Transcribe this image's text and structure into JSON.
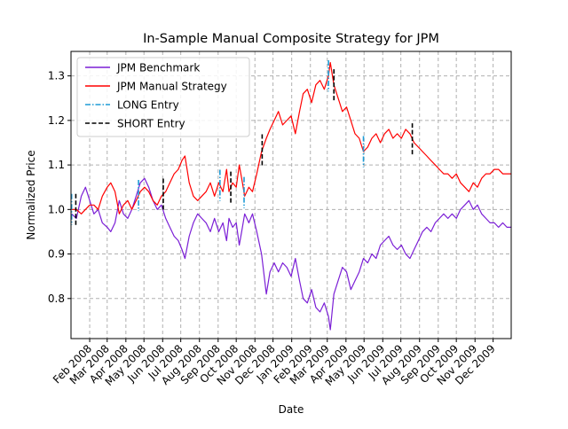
{
  "chart_data": {
    "type": "line",
    "title": "In-Sample Manual Composite Strategy for JPM",
    "xlabel": "Date",
    "ylabel": "Normalized Price",
    "x_range": [
      "2008-01-01",
      "2009-12-31"
    ],
    "ylim": [
      0.71,
      1.355
    ],
    "grid": true,
    "legend_position": "top-left",
    "x_ticks": [
      "Feb 2008",
      "Mar 2008",
      "Apr 2008",
      "May 2008",
      "Jun 2008",
      "Jul 2008",
      "Aug 2008",
      "Sep 2008",
      "Oct 2008",
      "Nov 2008",
      "Dec 2008",
      "Jan 2009",
      "Feb 2009",
      "Mar 2009",
      "Apr 2009",
      "May 2009",
      "Jun 2009",
      "Jul 2009",
      "Aug 2009",
      "Sep 2009",
      "Oct 2009",
      "Nov 2009",
      "Dec 2009"
    ],
    "x_tick_dates": [
      "2008-02-01",
      "2008-03-01",
      "2008-04-01",
      "2008-05-01",
      "2008-06-01",
      "2008-07-01",
      "2008-08-01",
      "2008-09-01",
      "2008-10-01",
      "2008-11-01",
      "2008-12-01",
      "2009-01-01",
      "2009-02-01",
      "2009-03-01",
      "2009-04-01",
      "2009-05-01",
      "2009-06-01",
      "2009-07-01",
      "2009-08-01",
      "2009-09-01",
      "2009-10-01",
      "2009-11-01",
      "2009-12-01"
    ],
    "y_ticks": [
      0.8,
      0.9,
      1.0,
      1.1,
      1.2,
      1.3
    ],
    "y_tick_labels": [
      "0.8",
      "0.9",
      "1.0",
      "1.1",
      "1.2",
      "1.3"
    ],
    "series": [
      {
        "name": "JPM Benchmark",
        "color": "#7b1fd6",
        "points": [
          [
            "2008-01-02",
            0.99
          ],
          [
            "2008-01-10",
            0.98
          ],
          [
            "2008-01-18",
            1.03
          ],
          [
            "2008-01-25",
            1.05
          ],
          [
            "2008-02-01",
            1.02
          ],
          [
            "2008-02-08",
            0.99
          ],
          [
            "2008-02-15",
            1.0
          ],
          [
            "2008-02-22",
            0.97
          ],
          [
            "2008-03-01",
            0.96
          ],
          [
            "2008-03-07",
            0.95
          ],
          [
            "2008-03-14",
            0.97
          ],
          [
            "2008-03-21",
            1.02
          ],
          [
            "2008-03-28",
            0.99
          ],
          [
            "2008-04-04",
            0.98
          ],
          [
            "2008-04-11",
            1.0
          ],
          [
            "2008-04-18",
            1.03
          ],
          [
            "2008-04-25",
            1.06
          ],
          [
            "2008-05-02",
            1.07
          ],
          [
            "2008-05-09",
            1.05
          ],
          [
            "2008-05-16",
            1.02
          ],
          [
            "2008-05-23",
            1.0
          ],
          [
            "2008-05-30",
            1.01
          ],
          [
            "2008-06-06",
            0.98
          ],
          [
            "2008-06-13",
            0.96
          ],
          [
            "2008-06-20",
            0.94
          ],
          [
            "2008-06-27",
            0.93
          ],
          [
            "2008-07-03",
            0.91
          ],
          [
            "2008-07-08",
            0.89
          ],
          [
            "2008-07-15",
            0.94
          ],
          [
            "2008-07-22",
            0.97
          ],
          [
            "2008-07-29",
            0.99
          ],
          [
            "2008-08-05",
            0.98
          ],
          [
            "2008-08-12",
            0.97
          ],
          [
            "2008-08-19",
            0.95
          ],
          [
            "2008-08-26",
            0.98
          ],
          [
            "2008-09-02",
            0.95
          ],
          [
            "2008-09-09",
            0.97
          ],
          [
            "2008-09-15",
            0.93
          ],
          [
            "2008-09-19",
            0.98
          ],
          [
            "2008-09-25",
            0.96
          ],
          [
            "2008-10-01",
            0.97
          ],
          [
            "2008-10-06",
            0.92
          ],
          [
            "2008-10-10",
            0.95
          ],
          [
            "2008-10-15",
            0.99
          ],
          [
            "2008-10-22",
            0.97
          ],
          [
            "2008-10-28",
            0.99
          ],
          [
            "2008-11-04",
            0.95
          ],
          [
            "2008-11-12",
            0.9
          ],
          [
            "2008-11-20",
            0.81
          ],
          [
            "2008-11-26",
            0.86
          ],
          [
            "2008-12-03",
            0.88
          ],
          [
            "2008-12-10",
            0.86
          ],
          [
            "2008-12-17",
            0.88
          ],
          [
            "2008-12-24",
            0.87
          ],
          [
            "2008-12-31",
            0.85
          ],
          [
            "2009-01-07",
            0.89
          ],
          [
            "2009-01-14",
            0.84
          ],
          [
            "2009-01-20",
            0.8
          ],
          [
            "2009-01-27",
            0.79
          ],
          [
            "2009-02-03",
            0.82
          ],
          [
            "2009-02-10",
            0.78
          ],
          [
            "2009-02-17",
            0.77
          ],
          [
            "2009-02-24",
            0.79
          ],
          [
            "2009-03-03",
            0.76
          ],
          [
            "2009-03-06",
            0.73
          ],
          [
            "2009-03-12",
            0.81
          ],
          [
            "2009-03-19",
            0.84
          ],
          [
            "2009-03-26",
            0.87
          ],
          [
            "2009-04-02",
            0.86
          ],
          [
            "2009-04-09",
            0.82
          ],
          [
            "2009-04-16",
            0.84
          ],
          [
            "2009-04-23",
            0.86
          ],
          [
            "2009-04-30",
            0.89
          ],
          [
            "2009-05-07",
            0.88
          ],
          [
            "2009-05-14",
            0.9
          ],
          [
            "2009-05-21",
            0.89
          ],
          [
            "2009-05-28",
            0.92
          ],
          [
            "2009-06-04",
            0.93
          ],
          [
            "2009-06-11",
            0.94
          ],
          [
            "2009-06-18",
            0.92
          ],
          [
            "2009-06-25",
            0.91
          ],
          [
            "2009-07-02",
            0.92
          ],
          [
            "2009-07-09",
            0.9
          ],
          [
            "2009-07-16",
            0.89
          ],
          [
            "2009-07-23",
            0.91
          ],
          [
            "2009-07-30",
            0.93
          ],
          [
            "2009-08-06",
            0.95
          ],
          [
            "2009-08-13",
            0.96
          ],
          [
            "2009-08-20",
            0.95
          ],
          [
            "2009-08-27",
            0.97
          ],
          [
            "2009-09-03",
            0.98
          ],
          [
            "2009-09-10",
            0.99
          ],
          [
            "2009-09-17",
            0.98
          ],
          [
            "2009-09-24",
            0.99
          ],
          [
            "2009-10-01",
            0.98
          ],
          [
            "2009-10-08",
            1.0
          ],
          [
            "2009-10-15",
            1.01
          ],
          [
            "2009-10-22",
            1.02
          ],
          [
            "2009-10-29",
            1.0
          ],
          [
            "2009-11-05",
            1.01
          ],
          [
            "2009-11-12",
            0.99
          ],
          [
            "2009-11-19",
            0.98
          ],
          [
            "2009-11-26",
            0.97
          ],
          [
            "2009-12-03",
            0.97
          ],
          [
            "2009-12-10",
            0.96
          ],
          [
            "2009-12-17",
            0.97
          ],
          [
            "2009-12-24",
            0.96
          ],
          [
            "2009-12-31",
            0.96
          ]
        ]
      },
      {
        "name": "JPM Manual Strategy",
        "color": "#ff0000",
        "points": [
          [
            "2008-01-02",
            1.0
          ],
          [
            "2008-01-10",
            1.0
          ],
          [
            "2008-01-18",
            0.99
          ],
          [
            "2008-01-25",
            1.0
          ],
          [
            "2008-02-01",
            1.01
          ],
          [
            "2008-02-08",
            1.01
          ],
          [
            "2008-02-15",
            1.0
          ],
          [
            "2008-02-22",
            1.03
          ],
          [
            "2008-03-01",
            1.05
          ],
          [
            "2008-03-07",
            1.06
          ],
          [
            "2008-03-14",
            1.04
          ],
          [
            "2008-03-21",
            0.99
          ],
          [
            "2008-03-28",
            1.01
          ],
          [
            "2008-04-04",
            1.02
          ],
          [
            "2008-04-11",
            1.0
          ],
          [
            "2008-04-18",
            1.02
          ],
          [
            "2008-04-25",
            1.04
          ],
          [
            "2008-05-02",
            1.05
          ],
          [
            "2008-05-09",
            1.04
          ],
          [
            "2008-05-16",
            1.02
          ],
          [
            "2008-05-23",
            1.01
          ],
          [
            "2008-05-30",
            1.03
          ],
          [
            "2008-06-06",
            1.04
          ],
          [
            "2008-06-13",
            1.06
          ],
          [
            "2008-06-20",
            1.08
          ],
          [
            "2008-06-27",
            1.09
          ],
          [
            "2008-07-03",
            1.11
          ],
          [
            "2008-07-08",
            1.12
          ],
          [
            "2008-07-15",
            1.06
          ],
          [
            "2008-07-22",
            1.03
          ],
          [
            "2008-07-29",
            1.02
          ],
          [
            "2008-08-05",
            1.03
          ],
          [
            "2008-08-12",
            1.04
          ],
          [
            "2008-08-19",
            1.06
          ],
          [
            "2008-08-26",
            1.03
          ],
          [
            "2008-09-02",
            1.06
          ],
          [
            "2008-09-09",
            1.04
          ],
          [
            "2008-09-15",
            1.09
          ],
          [
            "2008-09-19",
            1.04
          ],
          [
            "2008-09-25",
            1.06
          ],
          [
            "2008-10-01",
            1.05
          ],
          [
            "2008-10-06",
            1.1
          ],
          [
            "2008-10-10",
            1.07
          ],
          [
            "2008-10-15",
            1.03
          ],
          [
            "2008-10-22",
            1.05
          ],
          [
            "2008-10-28",
            1.04
          ],
          [
            "2008-11-04",
            1.08
          ],
          [
            "2008-11-12",
            1.13
          ],
          [
            "2008-11-20",
            1.16
          ],
          [
            "2008-11-26",
            1.18
          ],
          [
            "2008-12-03",
            1.2
          ],
          [
            "2008-12-10",
            1.22
          ],
          [
            "2008-12-17",
            1.19
          ],
          [
            "2008-12-24",
            1.2
          ],
          [
            "2008-12-31",
            1.21
          ],
          [
            "2009-01-07",
            1.17
          ],
          [
            "2009-01-14",
            1.22
          ],
          [
            "2009-01-20",
            1.26
          ],
          [
            "2009-01-27",
            1.27
          ],
          [
            "2009-02-03",
            1.24
          ],
          [
            "2009-02-10",
            1.28
          ],
          [
            "2009-02-17",
            1.29
          ],
          [
            "2009-02-24",
            1.27
          ],
          [
            "2009-03-03",
            1.3
          ],
          [
            "2009-03-06",
            1.33
          ],
          [
            "2009-03-12",
            1.28
          ],
          [
            "2009-03-19",
            1.25
          ],
          [
            "2009-03-26",
            1.22
          ],
          [
            "2009-04-02",
            1.23
          ],
          [
            "2009-04-09",
            1.2
          ],
          [
            "2009-04-16",
            1.17
          ],
          [
            "2009-04-23",
            1.16
          ],
          [
            "2009-04-30",
            1.13
          ],
          [
            "2009-05-07",
            1.14
          ],
          [
            "2009-05-14",
            1.16
          ],
          [
            "2009-05-21",
            1.17
          ],
          [
            "2009-05-28",
            1.15
          ],
          [
            "2009-06-04",
            1.17
          ],
          [
            "2009-06-11",
            1.18
          ],
          [
            "2009-06-18",
            1.16
          ],
          [
            "2009-06-25",
            1.17
          ],
          [
            "2009-07-02",
            1.16
          ],
          [
            "2009-07-09",
            1.18
          ],
          [
            "2009-07-16",
            1.17
          ],
          [
            "2009-07-23",
            1.15
          ],
          [
            "2009-07-30",
            1.14
          ],
          [
            "2009-08-06",
            1.13
          ],
          [
            "2009-08-13",
            1.12
          ],
          [
            "2009-08-20",
            1.11
          ],
          [
            "2009-08-27",
            1.1
          ],
          [
            "2009-09-03",
            1.09
          ],
          [
            "2009-09-10",
            1.08
          ],
          [
            "2009-09-17",
            1.08
          ],
          [
            "2009-09-24",
            1.07
          ],
          [
            "2009-10-01",
            1.08
          ],
          [
            "2009-10-08",
            1.06
          ],
          [
            "2009-10-15",
            1.05
          ],
          [
            "2009-10-22",
            1.04
          ],
          [
            "2009-10-29",
            1.06
          ],
          [
            "2009-11-05",
            1.05
          ],
          [
            "2009-11-12",
            1.07
          ],
          [
            "2009-11-19",
            1.08
          ],
          [
            "2009-11-26",
            1.08
          ],
          [
            "2009-12-03",
            1.09
          ],
          [
            "2009-12-10",
            1.09
          ],
          [
            "2009-12-17",
            1.08
          ],
          [
            "2009-12-24",
            1.08
          ],
          [
            "2009-12-31",
            1.08
          ]
        ]
      }
    ],
    "long_entries": {
      "name": "LONG Entry",
      "color": "#1f9bd6",
      "dates": [
        "2008-01-02",
        "2008-04-22",
        "2008-09-04",
        "2008-10-14",
        "2009-03-03",
        "2009-04-30"
      ]
    },
    "short_entries": {
      "name": "SHORT Entry",
      "color": "#000000",
      "dates": [
        "2008-01-09",
        "2008-06-02",
        "2008-09-22",
        "2008-11-13",
        "2009-03-12",
        "2009-07-20"
      ]
    }
  }
}
